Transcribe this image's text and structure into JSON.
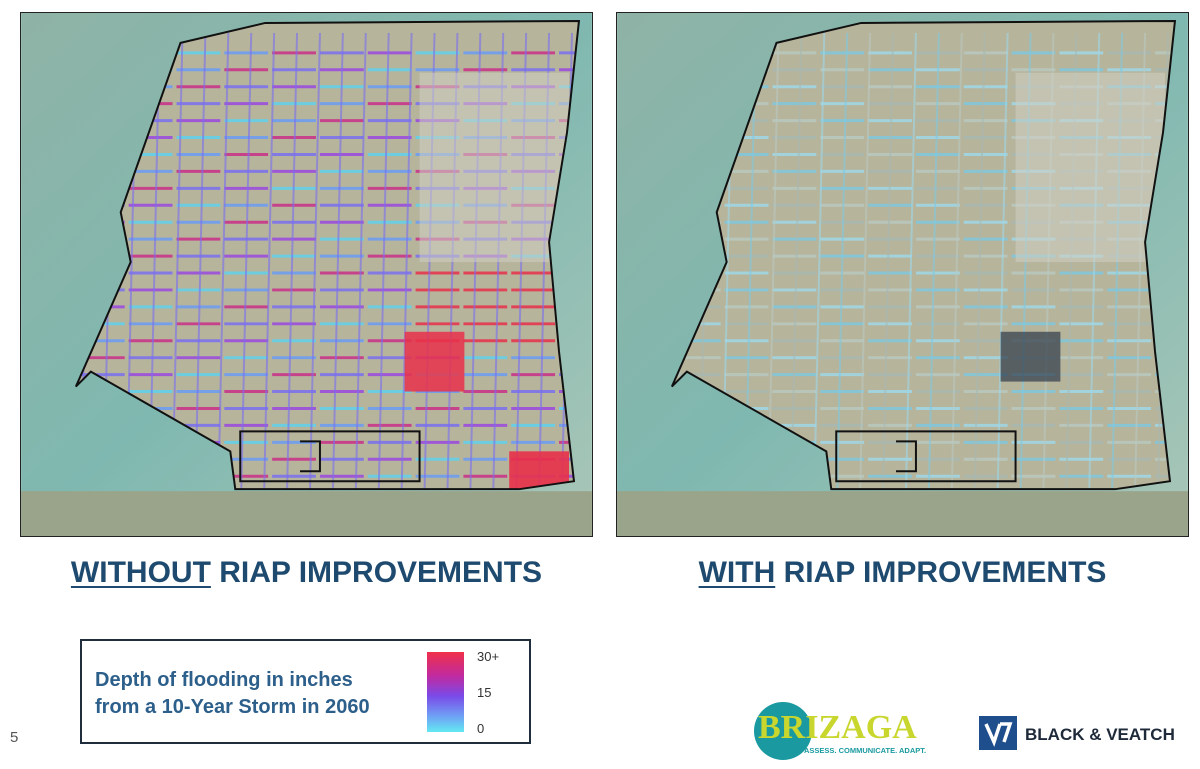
{
  "slide_number": "5",
  "maps": [
    {
      "caption_emphasis": "WITHOUT",
      "caption_rest": "RIAP IMPROVEMENTS"
    },
    {
      "caption_emphasis": "WITH",
      "caption_rest": "RIAP IMPROVEMENTS"
    }
  ],
  "legend": {
    "title_lines": [
      "Depth of flooding in inches",
      "from a 10-Year Storm in 2060"
    ],
    "scale_labels": [
      "30+",
      "15",
      "0"
    ]
  },
  "logos": {
    "brizaga": {
      "name": "BRIZAGA",
      "tagline": "ASSESS. COMMUNICATE. ADAPT."
    },
    "black_veatch": {
      "name": "BLACK & VEATCH"
    }
  }
}
